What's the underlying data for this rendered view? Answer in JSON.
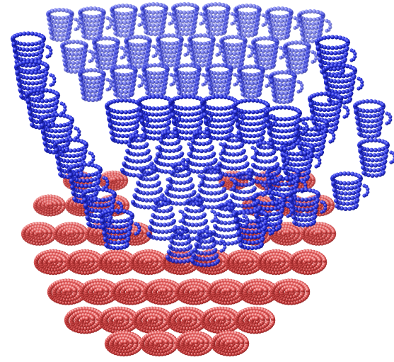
{
  "image": {
    "description_free": true,
    "colors": {
      "background": "#ffffff",
      "blue_light": "#7f86ff",
      "blue_mid": "#2a33e0",
      "blue_dark": "#0c1390",
      "red_light": "#ffc9c9",
      "red_mid": "#e45a5a",
      "red_dark": "#9b1f1f"
    },
    "objects": {
      "blue_cups": "cup-icon",
      "red_disks": "disk-icon"
    }
  }
}
